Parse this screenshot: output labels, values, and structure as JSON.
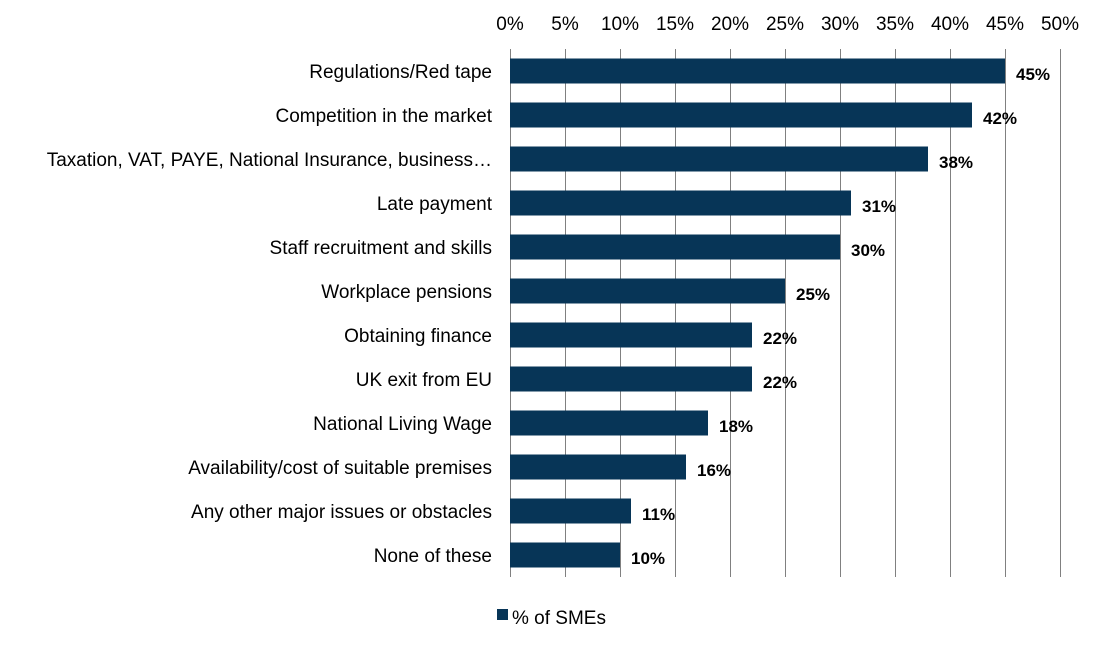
{
  "chart_data": {
    "type": "bar",
    "orientation": "horizontal",
    "categories": [
      "Regulations/Red tape",
      "Competition in the market",
      "Taxation, VAT, PAYE, National Insurance, business…",
      "Late payment",
      "Staff recruitment and skills",
      "Workplace pensions",
      "Obtaining finance",
      "UK exit from EU",
      "National Living Wage",
      "Availability/cost of suitable premises",
      "Any other major issues or obstacles",
      "None of these"
    ],
    "series": [
      {
        "name": "% of SMEs",
        "values": [
          45,
          42,
          38,
          31,
          30,
          25,
          22,
          22,
          18,
          16,
          11,
          10
        ],
        "labels": [
          "45%",
          "42%",
          "38%",
          "31%",
          "30%",
          "25%",
          "22%",
          "22%",
          "18%",
          "16%",
          "11%",
          "10%"
        ]
      }
    ],
    "xlim": [
      0,
      50
    ],
    "x_ticks": [
      0,
      5,
      10,
      15,
      20,
      25,
      30,
      35,
      40,
      45,
      50
    ],
    "x_tick_labels": [
      "0%",
      "5%",
      "10%",
      "15%",
      "20%",
      "25%",
      "30%",
      "35%",
      "40%",
      "45%",
      "50%"
    ],
    "x_axis_position": "top",
    "grid": true,
    "legend_position": "bottom-left",
    "colors": {
      "bar": "#073557",
      "grid": "#808080",
      "text": "#000000"
    },
    "title": "",
    "xlabel": "",
    "ylabel": ""
  }
}
